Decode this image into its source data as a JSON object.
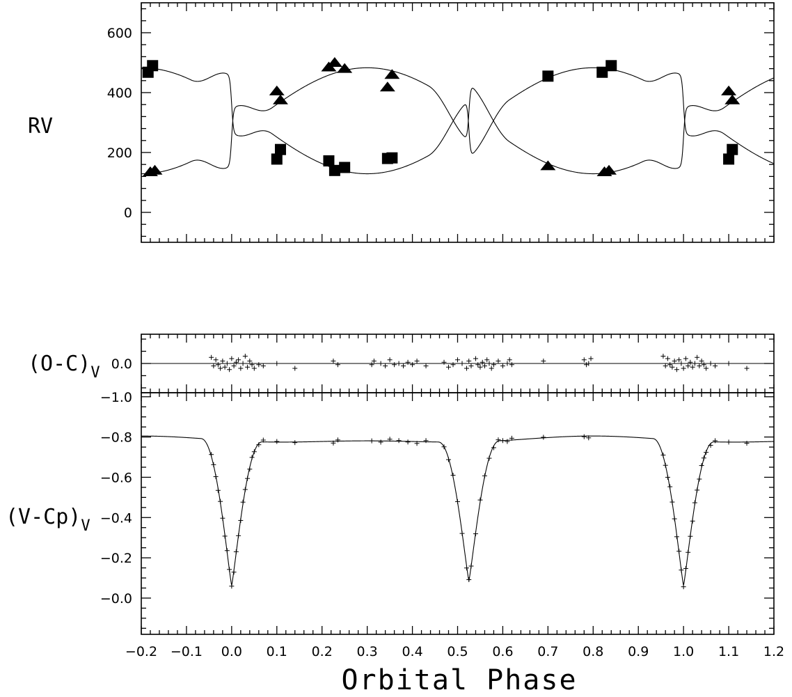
{
  "chart_data": [
    {
      "type": "scatter",
      "panel": "radial-velocity",
      "ylabel": "RV",
      "xlim": [
        -0.2,
        1.2
      ],
      "ylim": [
        -100,
        700
      ],
      "yticks": [
        0,
        200,
        400,
        600
      ],
      "ytick_labels": [
        "0",
        "200",
        "400",
        "600"
      ],
      "series": [
        {
          "marker": "square",
          "x": [
            -0.185,
            -0.175,
            0.1,
            0.108,
            0.215,
            0.228,
            0.25,
            0.345,
            0.355,
            0.7,
            0.82,
            0.84,
            1.1,
            1.108
          ],
          "y": [
            468,
            490,
            178,
            210,
            172,
            140,
            150,
            180,
            182,
            455,
            468,
            490,
            178,
            210
          ]
        },
        {
          "marker": "triangle",
          "x": [
            -0.18,
            -0.17,
            0.1,
            0.108,
            0.215,
            0.228,
            0.25,
            0.345,
            0.355,
            0.7,
            0.825,
            0.835,
            1.1,
            1.108
          ],
          "y": [
            135,
            140,
            405,
            375,
            485,
            500,
            480,
            418,
            460,
            155,
            135,
            140,
            405,
            375
          ]
        }
      ]
    },
    {
      "type": "scatter",
      "panel": "residuals",
      "ylabel": "(O-C)",
      "ylabel_sub": "V",
      "xlim": [
        -0.2,
        1.2
      ],
      "ylim": [
        0.12,
        -0.12
      ],
      "yticks": [
        0.0
      ],
      "ytick_labels": [
        "0.0"
      ],
      "points_x": [
        -0.045,
        -0.04,
        -0.035,
        -0.03,
        -0.025,
        -0.02,
        -0.015,
        -0.01,
        -0.005,
        0.0,
        0.005,
        0.01,
        0.015,
        0.02,
        0.025,
        0.03,
        0.035,
        0.04,
        0.045,
        0.05,
        0.06,
        0.07,
        0.1,
        0.14,
        0.225,
        0.235,
        0.31,
        0.315,
        0.33,
        0.34,
        0.35,
        0.36,
        0.37,
        0.38,
        0.39,
        0.4,
        0.41,
        0.43,
        0.47,
        0.48,
        0.49,
        0.5,
        0.51,
        0.52,
        0.525,
        0.53,
        0.54,
        0.545,
        0.55,
        0.555,
        0.56,
        0.565,
        0.57,
        0.575,
        0.58,
        0.59,
        0.6,
        0.61,
        0.615,
        0.62,
        0.69,
        0.78,
        0.785,
        0.79,
        0.795,
        0.955,
        0.96,
        0.965,
        0.97,
        0.975,
        0.98,
        0.985,
        0.99,
        0.995,
        1.0,
        1.005,
        1.01,
        1.015,
        1.02,
        1.025,
        1.03,
        1.035,
        1.04,
        1.045,
        1.05,
        1.06,
        1.07,
        1.1,
        1.14
      ],
      "points_y": [
        -0.025,
        0.01,
        -0.015,
        0.005,
        0.02,
        -0.01,
        0.015,
        0.0,
        0.025,
        -0.02,
        0.01,
        -0.005,
        -0.015,
        0.02,
        0.0,
        -0.03,
        0.015,
        -0.01,
        0.005,
        0.02,
        0.005,
        0.01,
        0.0,
        0.02,
        -0.01,
        0.005,
        0.005,
        -0.01,
        0.0,
        0.01,
        -0.015,
        0.005,
        0.0,
        0.01,
        -0.005,
        0.005,
        -0.01,
        0.01,
        -0.005,
        0.015,
        0.005,
        -0.015,
        0.0,
        0.02,
        -0.01,
        0.01,
        -0.02,
        0.005,
        0.015,
        -0.005,
        0.01,
        -0.015,
        0.0,
        0.02,
        0.005,
        -0.01,
        0.01,
        0.0,
        -0.015,
        0.005,
        -0.01,
        -0.015,
        0.005,
        0.0,
        -0.02,
        -0.03,
        0.01,
        -0.02,
        0.005,
        0.015,
        -0.01,
        0.025,
        -0.015,
        0.0,
        0.02,
        -0.02,
        0.01,
        -0.005,
        0.015,
        0.0,
        -0.025,
        0.01,
        -0.01,
        0.005,
        0.02,
        0.0,
        0.01,
        0.0,
        0.02
      ],
      "zero_line": true
    },
    {
      "type": "line",
      "panel": "light-curve",
      "ylabel": "(V-Cp)",
      "ylabel_sub": "V",
      "xlabel": "Orbital Phase",
      "xlim": [
        -0.2,
        1.2
      ],
      "ylim": [
        0.18,
        -1.02
      ],
      "yticks": [
        -1.0,
        -0.8,
        -0.6,
        -0.4,
        -0.2,
        -0.0
      ],
      "ytick_labels": [
        "-1.0",
        "-0.8",
        "-0.6",
        "-0.4",
        "-0.2",
        "-0.0"
      ],
      "xticks": [
        -0.2,
        -0.1,
        0.0,
        0.1,
        0.2,
        0.3,
        0.4,
        0.5,
        0.6,
        0.7,
        0.8,
        0.9,
        1.0,
        1.1,
        1.2
      ],
      "xtick_labels": [
        "-0.2",
        "-0.1",
        "0.0",
        "0.1",
        "0.2",
        "0.3",
        "0.4",
        "0.5",
        "0.6",
        "0.7",
        "0.8",
        "0.9",
        "1.0",
        "1.1",
        "1.2"
      ],
      "model": {
        "primary_min_phase": 0.0,
        "primary_min_depth": -0.05,
        "secondary_min_phase": 0.525,
        "secondary_min_depth": -0.08,
        "max_level": -0.8
      },
      "obs_phases": [
        -0.045,
        -0.04,
        -0.035,
        -0.03,
        -0.025,
        -0.02,
        -0.015,
        -0.01,
        -0.005,
        0.0,
        0.005,
        0.01,
        0.015,
        0.02,
        0.025,
        0.03,
        0.035,
        0.04,
        0.045,
        0.05,
        0.06,
        0.07,
        0.1,
        0.14,
        0.225,
        0.235,
        0.31,
        0.33,
        0.35,
        0.37,
        0.39,
        0.41,
        0.43,
        0.47,
        0.48,
        0.49,
        0.5,
        0.51,
        0.52,
        0.525,
        0.53,
        0.54,
        0.55,
        0.56,
        0.57,
        0.58,
        0.59,
        0.6,
        0.61,
        0.62,
        0.69,
        0.78,
        0.79,
        0.955,
        0.96,
        0.965,
        0.97,
        0.975,
        0.98,
        0.985,
        0.99,
        0.995,
        1.0,
        1.005,
        1.01,
        1.015,
        1.02,
        1.025,
        1.03,
        1.035,
        1.04,
        1.045,
        1.05,
        1.06,
        1.07,
        1.1,
        1.14
      ]
    }
  ]
}
